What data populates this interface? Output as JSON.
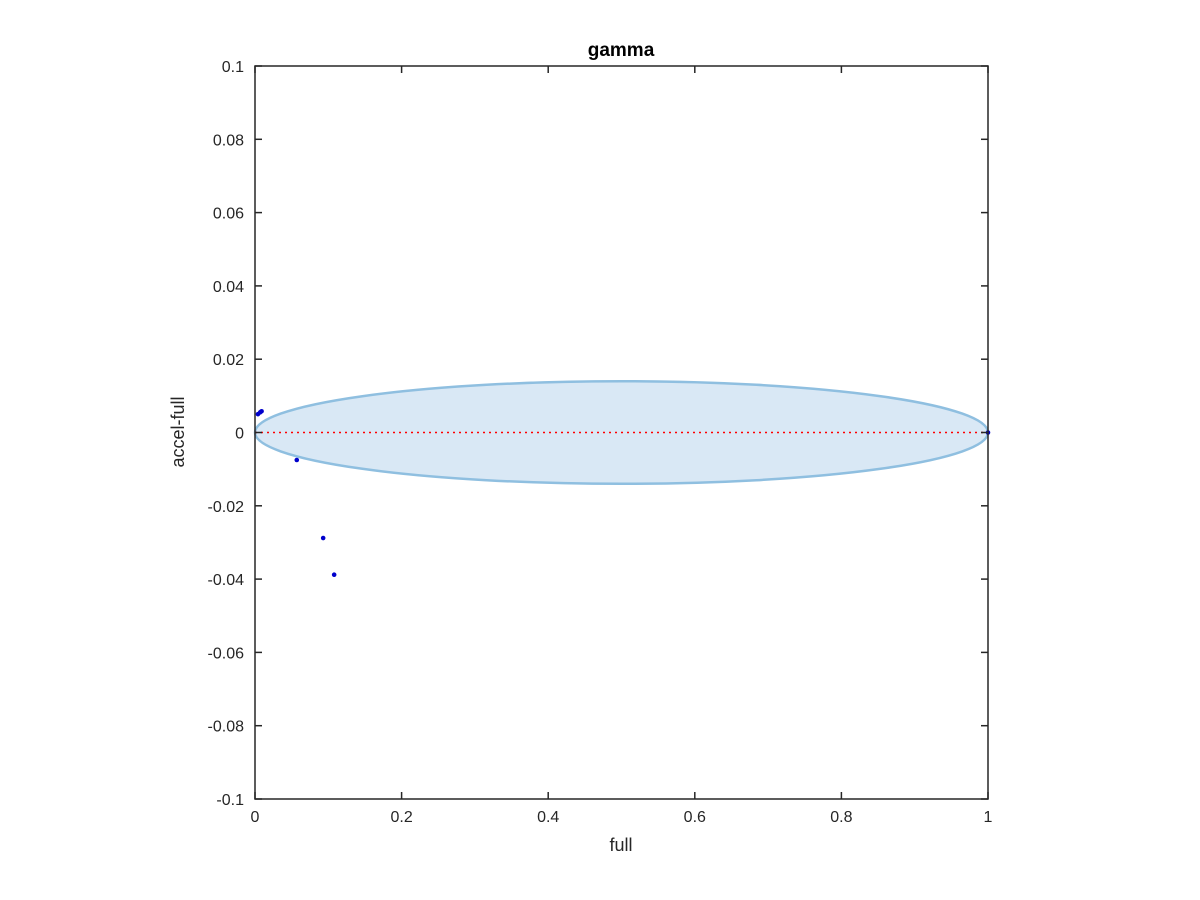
{
  "chart_data": {
    "type": "scatter",
    "title": "gamma",
    "xlabel": "full",
    "ylabel": "accel-full",
    "xlim": [
      0,
      1
    ],
    "ylim": [
      -0.1,
      0.1
    ],
    "xticks": [
      0,
      0.2,
      0.4,
      0.6,
      0.8,
      1
    ],
    "xtick_labels": [
      "0",
      "0.2",
      "0.4",
      "0.6",
      "0.8",
      "1"
    ],
    "yticks": [
      -0.1,
      -0.08,
      -0.06,
      -0.04,
      -0.02,
      0,
      0.02,
      0.04,
      0.06,
      0.08,
      0.1
    ],
    "ytick_labels": [
      "-0.1",
      "-0.08",
      "-0.06",
      "-0.04",
      "-0.02",
      "0",
      "0.02",
      "0.04",
      "0.06",
      "0.08",
      "0.1"
    ],
    "grid": false,
    "box": true,
    "series": [
      {
        "kind": "points",
        "color": "#0000cc",
        "points": [
          {
            "x": 0.004,
            "y": 0.005
          },
          {
            "x": 0.007,
            "y": 0.0055
          },
          {
            "x": 0.009,
            "y": 0.0058
          },
          {
            "x": 0.057,
            "y": -0.0075
          },
          {
            "x": 0.093,
            "y": -0.0288
          },
          {
            "x": 0.108,
            "y": -0.0388
          },
          {
            "x": 1.0,
            "y": 0.0
          }
        ]
      },
      {
        "kind": "reference-line",
        "color": "#ff0000",
        "style": "dotted",
        "x": [
          0,
          1
        ],
        "y": [
          0,
          0
        ]
      },
      {
        "kind": "ellipse",
        "fill": "#d9e8f5",
        "stroke": "#8fbfe0",
        "center": [
          0.5,
          0
        ],
        "x_radius": 0.5,
        "y_radius": 0.014
      }
    ]
  }
}
